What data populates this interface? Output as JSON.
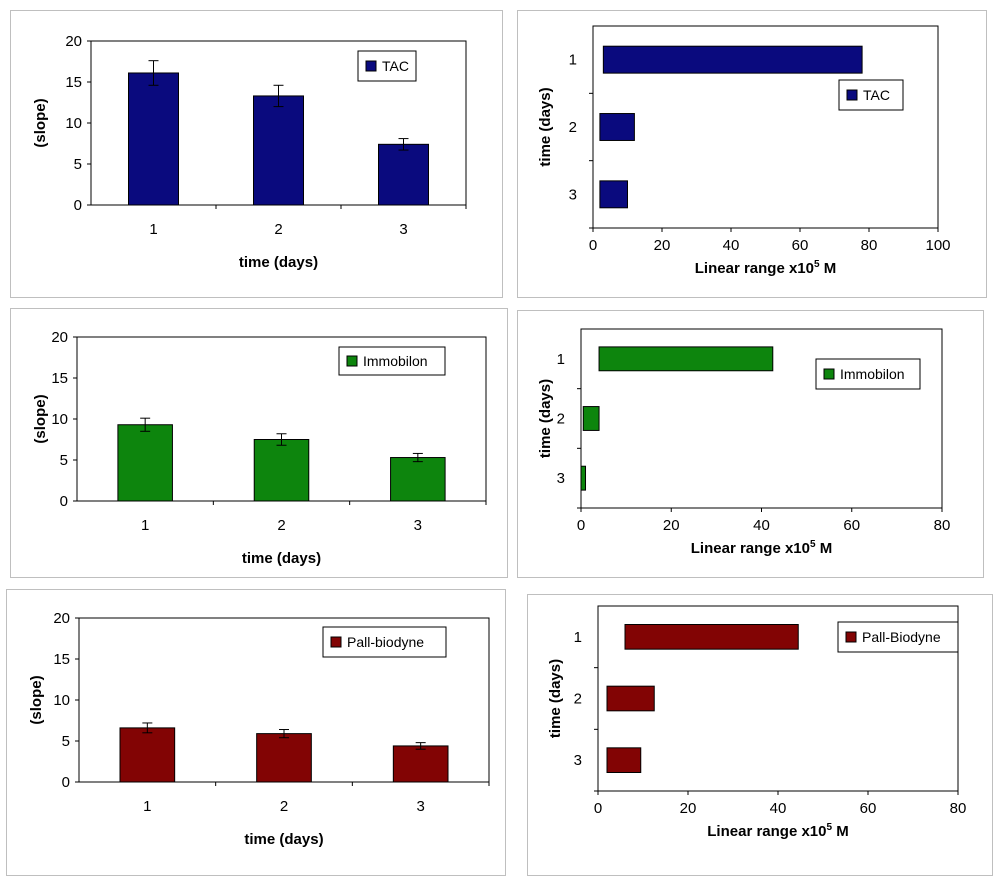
{
  "colors": {
    "tac": "#0a0a7e",
    "immobilon": "#0d850d",
    "pall": "#820404"
  },
  "chart_data": [
    {
      "type": "bar",
      "categories": [
        "1",
        "2",
        "3"
      ],
      "values": [
        16.1,
        13.3,
        7.4
      ],
      "errors": [
        1.5,
        1.3,
        0.7
      ],
      "legend": "TAC",
      "color_key": "tac",
      "xlabel": "time (days)",
      "ylabel": "(slope)",
      "ylim": [
        0,
        20
      ],
      "yticks": [
        "0",
        "5",
        "10",
        "15",
        "20"
      ],
      "grid": false,
      "legend_position": "top-right"
    },
    {
      "type": "bar",
      "orientation": "horizontal",
      "categories": [
        "1",
        "2",
        "3"
      ],
      "ranges": [
        [
          3,
          78
        ],
        [
          2,
          12
        ],
        [
          2,
          10
        ]
      ],
      "legend": "TAC",
      "color_key": "tac",
      "xlabel_main": "Linear range x10",
      "xlabel_sup": "5",
      "xlabel_tail": " M",
      "ylabel": "time (days)",
      "xlim": [
        0,
        100
      ],
      "xticks": [
        "0",
        "20",
        "40",
        "60",
        "80",
        "100"
      ],
      "grid": false,
      "legend_position": "right"
    },
    {
      "type": "bar",
      "categories": [
        "1",
        "2",
        "3"
      ],
      "values": [
        9.3,
        7.5,
        5.3
      ],
      "errors": [
        0.8,
        0.7,
        0.5
      ],
      "legend": "Immobilon",
      "color_key": "immobilon",
      "xlabel": "time (days)",
      "ylabel": "(slope)",
      "ylim": [
        0,
        20
      ],
      "yticks": [
        "0",
        "5",
        "10",
        "15",
        "20"
      ],
      "grid": false,
      "legend_position": "top-right"
    },
    {
      "type": "bar",
      "orientation": "horizontal",
      "categories": [
        "1",
        "2",
        "3"
      ],
      "ranges": [
        [
          4,
          42.5
        ],
        [
          0.5,
          4
        ],
        [
          0,
          1
        ]
      ],
      "legend": "Immobilon",
      "color_key": "immobilon",
      "xlabel_main": "Linear range x10",
      "xlabel_sup": "5",
      "xlabel_tail": " M",
      "ylabel": "time (days)",
      "xlim": [
        0,
        80
      ],
      "xticks": [
        "0",
        "20",
        "40",
        "60",
        "80"
      ],
      "grid": false,
      "legend_position": "right"
    },
    {
      "type": "bar",
      "categories": [
        "1",
        "2",
        "3"
      ],
      "values": [
        6.6,
        5.9,
        4.4
      ],
      "errors": [
        0.6,
        0.5,
        0.4
      ],
      "legend": "Pall-biodyne",
      "color_key": "pall",
      "xlabel": "time (days)",
      "ylabel": "(slope)",
      "ylim": [
        0,
        20
      ],
      "yticks": [
        "0",
        "5",
        "10",
        "15",
        "20"
      ],
      "grid": false,
      "legend_position": "top-right"
    },
    {
      "type": "bar",
      "orientation": "horizontal",
      "categories": [
        "1",
        "2",
        "3"
      ],
      "ranges": [
        [
          6,
          44.5
        ],
        [
          2,
          12.5
        ],
        [
          2,
          9.5
        ]
      ],
      "legend": "Pall-Biodyne",
      "color_key": "pall",
      "xlabel_main": "Linear range x10",
      "xlabel_sup": "5",
      "xlabel_tail": " M",
      "ylabel": "time (days)",
      "xlim": [
        0,
        80
      ],
      "xticks": [
        "0",
        "20",
        "40",
        "60",
        "80"
      ],
      "grid": false,
      "legend_position": "right"
    }
  ]
}
